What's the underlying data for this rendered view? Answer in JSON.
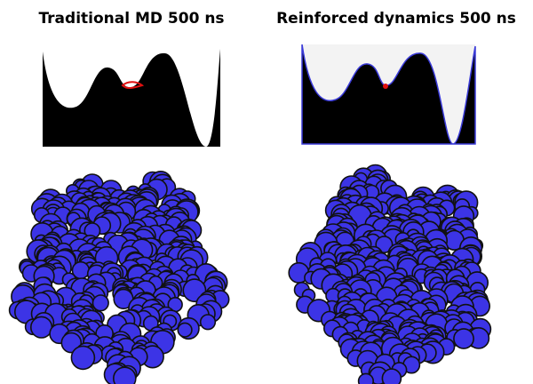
{
  "panels": [
    {
      "title": "Traditional MD 500 ns"
    },
    {
      "title": "Reinforced dynamics 500 ns"
    }
  ]
}
